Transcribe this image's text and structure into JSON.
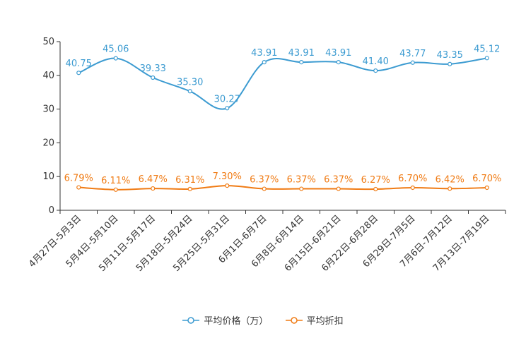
{
  "chart_data": {
    "type": "line",
    "categories": [
      "4月27日-5月3日",
      "5月4日-5月10日",
      "5月11日-5月17日",
      "5月18日-5月24日",
      "5月25日-5月31日",
      "6月1日-6月7日",
      "6月8日-6月14日",
      "6月15日-6月21日",
      "6月22日-6月28日",
      "6月29日-7月5日",
      "7月6日-7月12日",
      "7月13日-7月19日"
    ],
    "series": [
      {
        "name": "平均价格（万）",
        "values": [
          40.75,
          45.06,
          39.33,
          35.3,
          30.27,
          43.91,
          43.91,
          43.91,
          41.4,
          43.77,
          43.35,
          45.12
        ],
        "labels": [
          "40.75",
          "45.06",
          "39.33",
          "35.30",
          "30.27",
          "43.91",
          "43.91",
          "43.91",
          "41.40",
          "43.77",
          "43.35",
          "45.12"
        ],
        "color": "#3c9bd1"
      },
      {
        "name": "平均折扣",
        "values": [
          6.79,
          6.11,
          6.47,
          6.31,
          7.3,
          6.37,
          6.37,
          6.37,
          6.27,
          6.7,
          6.42,
          6.7
        ],
        "labels": [
          "6.79%",
          "6.11%",
          "6.47%",
          "6.31%",
          "7.30%",
          "6.37%",
          "6.37%",
          "6.37%",
          "6.27%",
          "6.70%",
          "6.42%",
          "6.70%"
        ],
        "color": "#f07b14"
      }
    ],
    "y_ticks": [
      "0",
      "10",
      "20",
      "30",
      "40",
      "50"
    ],
    "ylim": [
      0,
      50
    ],
    "title": "",
    "xlabel": "",
    "ylabel": "",
    "grid": false,
    "legend_position": "bottom"
  }
}
